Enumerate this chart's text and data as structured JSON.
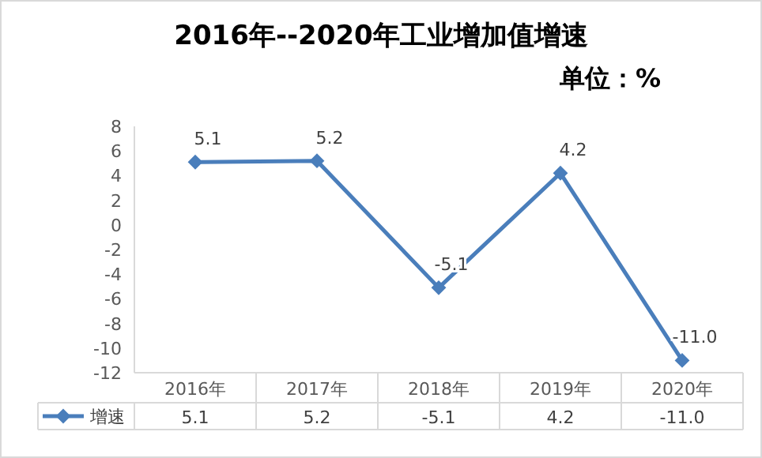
{
  "chart_data": {
    "type": "line",
    "title": "2016年--2020年工业增加值增速",
    "subtitle": "单位：%",
    "categories": [
      "2016年",
      "2017年",
      "2018年",
      "2019年",
      "2020年"
    ],
    "series": [
      {
        "name": "增速",
        "color": "#4a7ebb",
        "values": [
          5.1,
          5.2,
          -5.1,
          4.2,
          -11.0
        ],
        "value_labels": [
          "5.1",
          "5.2",
          "-5.1",
          "4.2",
          "-11.0"
        ]
      }
    ],
    "ylim": [
      -12,
      8
    ],
    "yticks": [
      -12,
      -10,
      -8,
      -6,
      -4,
      -2,
      0,
      2,
      4,
      6,
      8
    ],
    "marker": "diamond",
    "line_style": "solid",
    "legend": "bottom",
    "grid": false
  }
}
